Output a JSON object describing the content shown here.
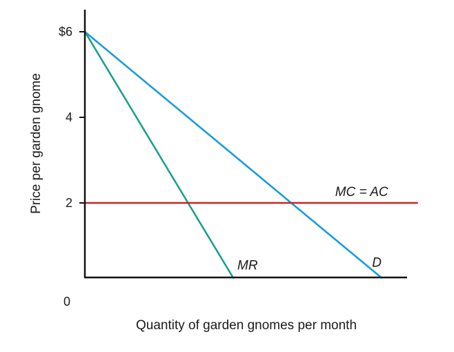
{
  "chart_data": {
    "type": "line",
    "title": "",
    "xlabel": "Quantity of garden gnomes per month",
    "ylabel": "Price per garden gnome",
    "ylim": [
      0,
      6
    ],
    "y_ticks": [
      {
        "value": 6,
        "label": "$6"
      },
      {
        "value": 4,
        "label": "4"
      },
      {
        "value": 2,
        "label": "2"
      }
    ],
    "origin_label": "0",
    "grid": false,
    "legend": "none",
    "series": [
      {
        "name": "D",
        "color": "#1a9bd7",
        "points": [
          [
            0,
            6
          ],
          [
            1,
            0.25
          ]
        ]
      },
      {
        "name": "MR",
        "color": "#1e9e8e",
        "points": [
          [
            0,
            6
          ],
          [
            0.5,
            0.25
          ]
        ]
      },
      {
        "name": "MC = AC",
        "color": "#c0262d",
        "points": [
          [
            0,
            2
          ],
          [
            1.12,
            2
          ]
        ]
      }
    ]
  }
}
